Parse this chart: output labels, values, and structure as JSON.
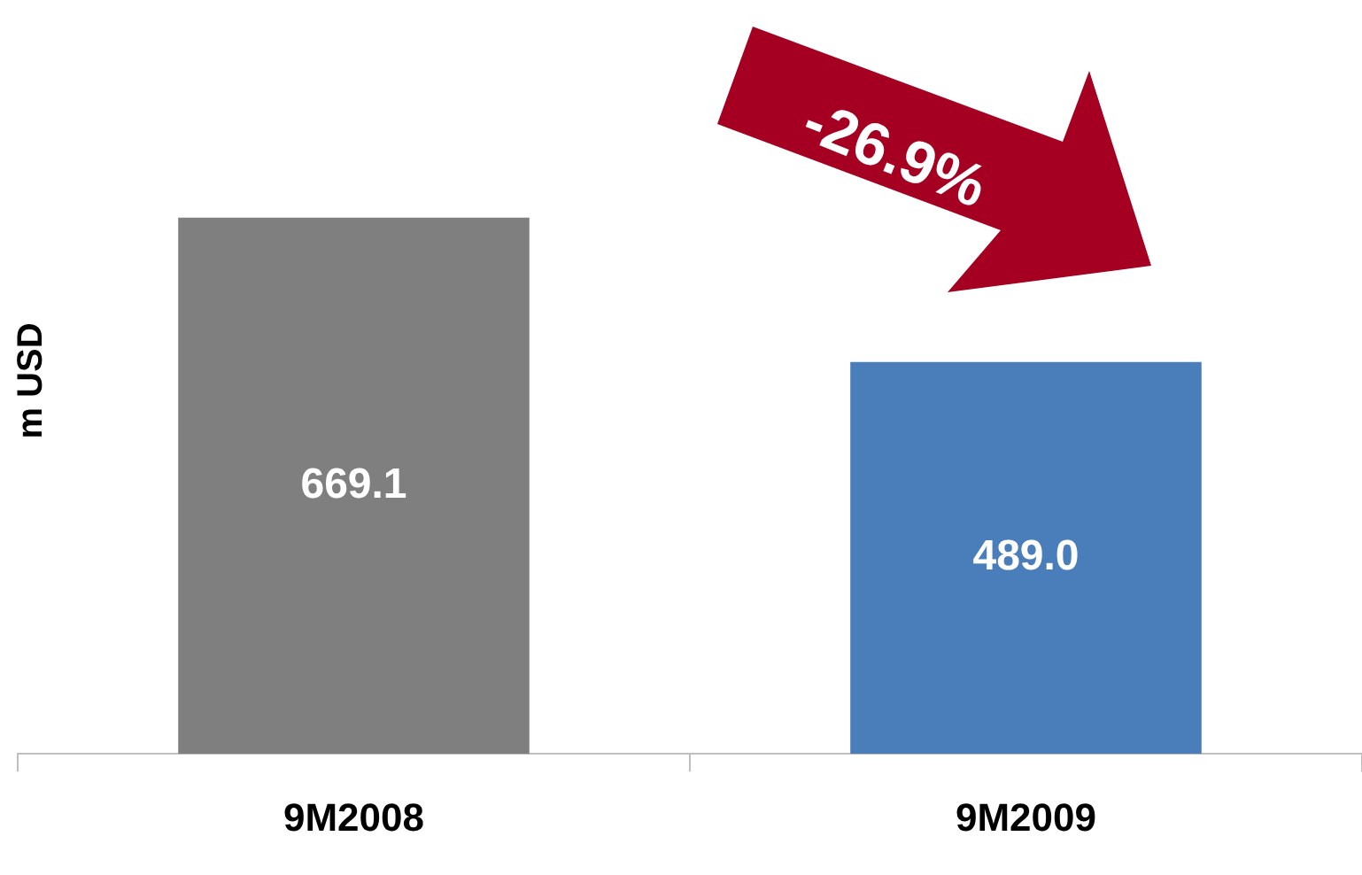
{
  "chart_data": {
    "type": "bar",
    "ylabel": "m USD",
    "categories": [
      "9M2008",
      "9M2009"
    ],
    "values": [
      669.1,
      489.0
    ],
    "colors": [
      "#7f7f7f",
      "#4a7ebb"
    ],
    "data_labels": true,
    "value_labels": [
      "669.1",
      "489.0"
    ],
    "legend": false,
    "grid": false,
    "annotations": [
      "-26.9%"
    ]
  }
}
